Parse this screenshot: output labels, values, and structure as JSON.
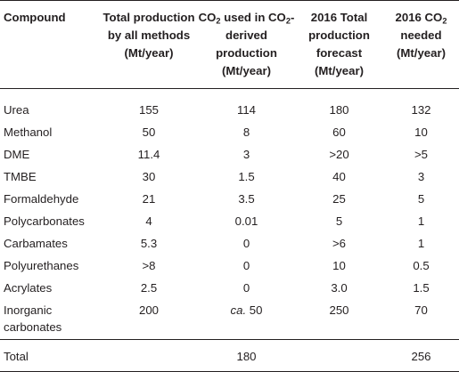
{
  "table": {
    "headers": [
      {
        "pre": "Compound",
        "sub": "",
        "post": ""
      },
      {
        "pre": "Total production by all methods (Mt/year)",
        "sub": "",
        "post": ""
      },
      {
        "pre": "CO",
        "sub": "2",
        "post": " used in CO",
        "sub2": "2",
        "post2": "-derived production (Mt/year)"
      },
      {
        "pre": "2016 Total production forecast (Mt/year)",
        "sub": "",
        "post": ""
      },
      {
        "pre": "2016 CO",
        "sub": "2",
        "post": " needed (Mt/year)"
      }
    ],
    "rows": [
      {
        "compound": "Urea",
        "total": "155",
        "co2_used_prefix": "",
        "co2_used": "114",
        "forecast": "180",
        "co2_needed": "132"
      },
      {
        "compound": "Methanol",
        "total": "50",
        "co2_used_prefix": "",
        "co2_used": "8",
        "forecast": "60",
        "co2_needed": "10"
      },
      {
        "compound": "DME",
        "total": "11.4",
        "co2_used_prefix": "",
        "co2_used": "3",
        "forecast": ">20",
        "co2_needed": ">5"
      },
      {
        "compound": "TMBE",
        "total": "30",
        "co2_used_prefix": "",
        "co2_used": "1.5",
        "forecast": "40",
        "co2_needed": "3"
      },
      {
        "compound": "Formaldehyde",
        "total": "21",
        "co2_used_prefix": "",
        "co2_used": "3.5",
        "forecast": "25",
        "co2_needed": "5"
      },
      {
        "compound": "Polycarbonates",
        "total": "4",
        "co2_used_prefix": "",
        "co2_used": "0.01",
        "forecast": "5",
        "co2_needed": "1"
      },
      {
        "compound": "Carbamates",
        "total": "5.3",
        "co2_used_prefix": "",
        "co2_used": "0",
        "forecast": ">6",
        "co2_needed": "1"
      },
      {
        "compound": "Polyurethanes",
        "total": ">8",
        "co2_used_prefix": "",
        "co2_used": "0",
        "forecast": "10",
        "co2_needed": "0.5"
      },
      {
        "compound": "Acrylates",
        "total": "2.5",
        "co2_used_prefix": "",
        "co2_used": "0",
        "forecast": "3.0",
        "co2_needed": "1.5"
      },
      {
        "compound": "Inorganic carbonates",
        "total": "200",
        "co2_used_prefix": "ca.",
        "co2_used": " 50",
        "forecast": "250",
        "co2_needed": "70"
      }
    ],
    "total_row": {
      "label": "Total",
      "total": "",
      "co2_used": "180",
      "forecast": "",
      "co2_needed": "256"
    }
  }
}
